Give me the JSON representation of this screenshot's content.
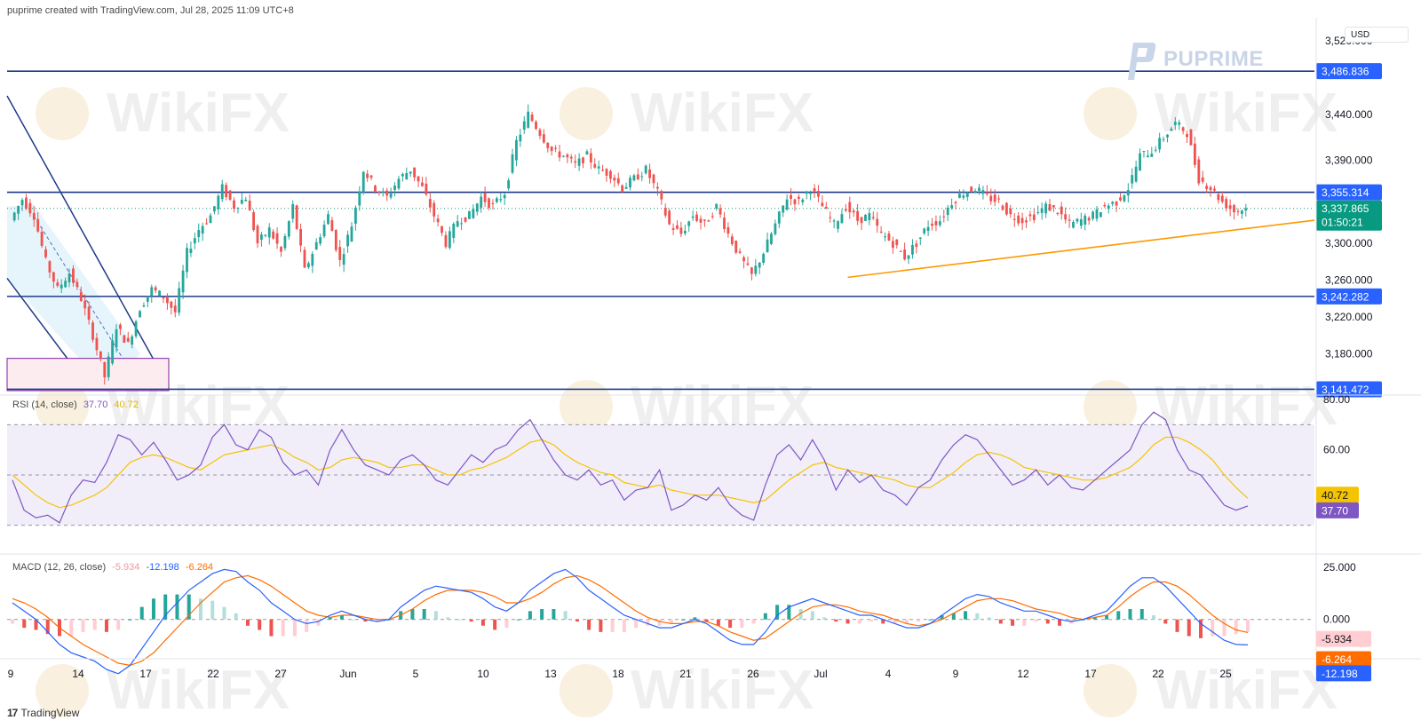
{
  "header": {
    "caption": "puprime created with TradingView.com, Jul 28, 2025 11:09 UTC+8"
  },
  "brand": {
    "name": "PUPRIME",
    "watermark": "WikiFX"
  },
  "price_axis": {
    "currency": "USD"
  },
  "footer": {
    "logo": "17",
    "label": "TradingView"
  },
  "colors": {
    "up": "#26a69a",
    "down": "#ef5350",
    "level_line": "#1e3a8a",
    "level_label": "#2962ff",
    "trendline": "#ff9800",
    "channel": "#1e3a8a",
    "rsi_line": "#7e57c2",
    "rsi_ma": "#f5c400",
    "macd_line": "#2962ff",
    "signal_line": "#ff6d00",
    "last_price": "#089981"
  },
  "chart_data": [
    {
      "type": "candlestick",
      "name": "XAUUSD price",
      "y_ticks": [
        "3,520.000",
        "3,440.000",
        "3,390.000",
        "3,300.000",
        "3,260.000",
        "3,220.000",
        "3,180.000"
      ],
      "y_tick_values": [
        3520,
        3440,
        3390,
        3300,
        3260,
        3220,
        3180
      ],
      "x_ticks": [
        "9",
        "14",
        "17",
        "22",
        "27",
        "Jun",
        "5",
        "10",
        "13",
        "18",
        "21",
        "26",
        "Jul",
        "4",
        "9",
        "12",
        "17",
        "22",
        "25"
      ],
      "levels": [
        {
          "label": "3,486.836",
          "value": 3486.836
        },
        {
          "label": "3,355.314",
          "value": 3355.314
        },
        {
          "label": "3,242.282",
          "value": 3242.282
        },
        {
          "label": "3,141.472",
          "value": 3141.472
        }
      ],
      "last_price": {
        "label": "3,337.865",
        "value": 3337.865,
        "countdown": "01:50:21"
      },
      "close_path": [
        3325,
        3348,
        3330,
        3280,
        3250,
        3268,
        3240,
        3200,
        3155,
        3210,
        3190,
        3230,
        3250,
        3242,
        3225,
        3290,
        3315,
        3330,
        3360,
        3340,
        3350,
        3300,
        3315,
        3290,
        3340,
        3270,
        3300,
        3330,
        3280,
        3320,
        3380,
        3360,
        3350,
        3370,
        3380,
        3360,
        3330,
        3300,
        3325,
        3330,
        3350,
        3340,
        3355,
        3410,
        3440,
        3420,
        3400,
        3395,
        3385,
        3395,
        3380,
        3375,
        3360,
        3370,
        3380,
        3355,
        3320,
        3310,
        3330,
        3320,
        3340,
        3310,
        3285,
        3265,
        3290,
        3320,
        3350,
        3345,
        3360,
        3340,
        3320,
        3340,
        3325,
        3330,
        3310,
        3300,
        3285,
        3300,
        3320,
        3325,
        3345,
        3355,
        3360,
        3350,
        3345,
        3330,
        3325,
        3330,
        3340,
        3335,
        3320,
        3325,
        3330,
        3340,
        3345,
        3360,
        3395,
        3400,
        3415,
        3430,
        3420,
        3370,
        3360,
        3345,
        3335,
        3338
      ]
    },
    {
      "type": "line",
      "name": "RSI (14, close)",
      "label": "RSI (14, close)",
      "current": {
        "rsi": "37.70",
        "ma": "40.72"
      },
      "ylim": [
        20,
        80
      ],
      "y_ticks": [
        "80.00",
        "60.00"
      ],
      "y_tick_values": [
        80,
        60
      ],
      "bands": [
        70,
        50,
        30
      ],
      "rsi": [
        48,
        36,
        33,
        34,
        31,
        42,
        48,
        47,
        55,
        66,
        64,
        58,
        63,
        56,
        48,
        50,
        54,
        65,
        70,
        62,
        60,
        68,
        65,
        55,
        50,
        52,
        46,
        60,
        68,
        60,
        54,
        52,
        50,
        56,
        58,
        54,
        48,
        46,
        52,
        58,
        55,
        60,
        62,
        68,
        72,
        64,
        56,
        50,
        48,
        52,
        46,
        48,
        40,
        44,
        45,
        52,
        36,
        38,
        42,
        40,
        45,
        38,
        34,
        32,
        46,
        58,
        62,
        56,
        64,
        56,
        44,
        52,
        47,
        50,
        44,
        42,
        38,
        45,
        48,
        56,
        62,
        66,
        64,
        58,
        52,
        46,
        48,
        52,
        46,
        50,
        45,
        44,
        48,
        52,
        56,
        60,
        70,
        75,
        72,
        60,
        52,
        50,
        44,
        38,
        36,
        37.7
      ],
      "rsi_ma": [
        50,
        46,
        42,
        39,
        37,
        38,
        40,
        42,
        45,
        50,
        55,
        57,
        58,
        57,
        55,
        53,
        52,
        55,
        58,
        59,
        60,
        61,
        62,
        60,
        57,
        55,
        52,
        53,
        56,
        57,
        56,
        55,
        53,
        53,
        54,
        54,
        52,
        50,
        50,
        52,
        53,
        55,
        57,
        60,
        63,
        64,
        62,
        58,
        55,
        53,
        51,
        50,
        47,
        46,
        45,
        46,
        44,
        43,
        42,
        42,
        42,
        41,
        40,
        39,
        40,
        44,
        48,
        51,
        54,
        55,
        53,
        52,
        51,
        50,
        49,
        48,
        46,
        45,
        45,
        48,
        51,
        55,
        58,
        59,
        58,
        56,
        53,
        52,
        51,
        50,
        49,
        48,
        48,
        49,
        51,
        53,
        57,
        62,
        65,
        65,
        63,
        60,
        56,
        50,
        45,
        40.72
      ]
    },
    {
      "type": "line",
      "name": "MACD (12, 26, close)",
      "label": "MACD (12, 26, close)",
      "current": {
        "histogram": "-5.934",
        "macd": "-12.198",
        "signal": "-6.264"
      },
      "ylim": [
        -18,
        28
      ],
      "y_ticks": [
        "25.000",
        "0.000"
      ],
      "y_tick_values": [
        25,
        0
      ],
      "macd": [
        8,
        4,
        0,
        -6,
        -12,
        -16,
        -18,
        -20,
        -24,
        -26,
        -22,
        -14,
        -6,
        2,
        8,
        14,
        18,
        22,
        24,
        23,
        18,
        14,
        8,
        4,
        0,
        -2,
        -1,
        2,
        4,
        2,
        0,
        -1,
        0,
        6,
        10,
        14,
        16,
        15,
        14,
        13,
        10,
        6,
        4,
        8,
        14,
        18,
        22,
        24,
        20,
        14,
        10,
        6,
        2,
        0,
        -2,
        -4,
        -4,
        -2,
        0,
        -2,
        -6,
        -10,
        -12,
        -12,
        -6,
        2,
        6,
        8,
        10,
        8,
        6,
        4,
        2,
        2,
        0,
        -2,
        -4,
        -4,
        -2,
        2,
        6,
        10,
        12,
        11,
        8,
        6,
        4,
        4,
        2,
        0,
        -1,
        0,
        2,
        4,
        10,
        16,
        20,
        20,
        16,
        10,
        4,
        -2,
        -6,
        -10,
        -12,
        -12.198
      ],
      "signal": [
        10,
        8,
        5,
        1,
        -4,
        -8,
        -12,
        -15,
        -18,
        -21,
        -22,
        -20,
        -16,
        -10,
        -4,
        2,
        8,
        13,
        18,
        20,
        21,
        19,
        16,
        12,
        8,
        4,
        2,
        1,
        2,
        2,
        1,
        0,
        0,
        2,
        5,
        9,
        12,
        14,
        14,
        14,
        13,
        11,
        8,
        8,
        10,
        13,
        17,
        20,
        21,
        19,
        16,
        12,
        8,
        4,
        1,
        -1,
        -2,
        -2,
        -1,
        -1,
        -3,
        -6,
        -8,
        -10,
        -9,
        -5,
        -1,
        3,
        6,
        7,
        7,
        6,
        4,
        3,
        2,
        0,
        -2,
        -3,
        -2,
        0,
        3,
        6,
        9,
        10,
        10,
        9,
        7,
        5,
        4,
        3,
        1,
        0,
        1,
        2,
        6,
        11,
        15,
        18,
        18,
        16,
        12,
        7,
        2,
        -2,
        -5,
        -6.264
      ]
    }
  ]
}
